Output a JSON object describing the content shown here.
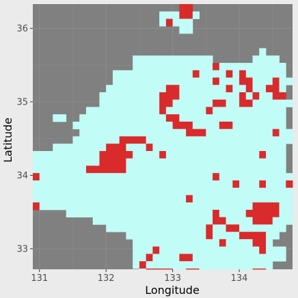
{
  "chart_data": {
    "type": "heatmap",
    "title": "",
    "xlabel": "Longitude",
    "ylabel": "Latitude",
    "xlim": [
      130.9,
      134.8
    ],
    "ylim": [
      32.72,
      36.33
    ],
    "x_ticks": [
      131,
      132,
      133,
      134
    ],
    "y_ticks": [
      33,
      34,
      35,
      36
    ],
    "x_tick_labels": [
      "131",
      "132",
      "133",
      "134"
    ],
    "y_tick_labels": [
      "33",
      "34",
      "35",
      "36"
    ],
    "grid": true,
    "legend": "none",
    "colors": {
      "panel": "#808080",
      "grid": "#8c8c8c",
      "background": "#ebebeb",
      "land": "#c1fcf7",
      "highlight": "#d92b2b"
    },
    "cells": {
      "row_lat_top": 36.33,
      "row_step": 0.1,
      "col_lon_left": 130.9,
      "col_step": 0.1,
      "key": {
        "L": "land",
        "R": "highlight",
        ".": "none"
      },
      "rows": [
        "......................RR...............",
        "...................LLLRRL..............",
        "...................LRLLL...............",
        "......................LL...............",
        ".......................................",
        ".......................................",
        "..................................L....",
        "...............LLLLLLLLLLLL......LLLL..",
        "...............LLLLLLLLLLLLRLLLLLLLLLL.",
        "............LLLLLLLLLLLLRLLLLRLRLLLLLL.",
        "............LLLLLLLLLLLLLLLRLLLRRLLLRLL",
        "...........LLLLLLLLLRRLLLLLLLRLLRLLRRL.",
        "..........LLLLLLLLLRRRLLLLLLLLLRLRLLRR.",
        "..........LLLLLLLLLRRLLLLLLRRLLRRLLLLLL",
        "........LLLLLLLLLLLRLLLLLLRLLLLLLLLLLL.",
        "...LL..LLLLLLLLLLLLLRRLLLLLLLLLLLLLLLL.",
        "......LLLLLLLLLLLLLLLRRRLLLLRRLLLLLLLL.",
        ".......LLLLLLLLLLLLLLLLRRRLLLLLLLLLLRLL.",
        "......LLLLLLLRRRRLLLLLLLLLLLLLLLLLLLLLL.",
        "...LLLLLLLLRRRLLLRLLLLLLLLLLLLLLLLLLLL.",
        "LLLLLLLLLLRRRRRLLLLRLLLLLLLLLLLLLLRLLL.",
        "LLLLLLLLLLRRRRLLLLLLLLLLLLLLLLLLLLLLLL.",
        "LLLLLLLLRRRRRRLLLLLLLLLLLLLLLLLLLLLLLL.",
        "RLLLLLLLLLLLLLLLLLLLLLLLLLLRLLLLLLLLLLL",
        "LLLLLLLLLLLLLLLLLLLLLLLLLLLLLLRLLLRLLLR",
        "LLLLLLLLLLLLLLLLLLLLLLLLLLLLLLLLLLLLLLL",
        "LLLLLLLLLLLLLLLLLLLLLLLRLLLLLLLLLLLLLLL",
        "RLLLLLLLLLLLLLLLLLLLLLLLLLLLLLLLLRRRRLL",
        ".....LLLLLLLLLLLLLLLLLLLLLLRLLLLRRRRRLL",
        ".........LLLLLLLLLLLLLLLLLLRRLLLLRRRLLL",
        "...........LLLLLLLLLLLLLLLRLLRRLLLLLLL.",
        "..............LLLLLLLLLLLLRLLLLRRRRLL..",
        "...............LLLLLLLLLLLLLRLLLLRRL...",
        "...............LLLRLLLLLLLLLLLLLLLRLLL.",
        "...............LLRLLLLRRLLLLLLLLLLLLLL.",
        "...............LRLLLLLLLLLLLLLLLLLLL...",
        "................LRRRRLLRRLLLLLLLLRRL...",
        "................LLLRRLLLLLLLLLLLLRRLL..",
        "................LLLLLLLLLLLLLLLLLLLLL..",
        "................LLLLRLLLLLLLLLLLLL.....",
        "................LLLLLLLLLLLLLLLLLL.....",
        "................LLLLLLLLLLLLLLLLLL.....",
        "................LLLLLLLLLLLLLLLLLL.....",
        "................LLLLLLLLLLLLLLLLLL.....",
        "................LLLLLLLLLLLLLLL........",
        "................LLLLLLLLLLLLLLL........",
        "................LLLLLLLLLLLL..........."
      ]
    }
  }
}
